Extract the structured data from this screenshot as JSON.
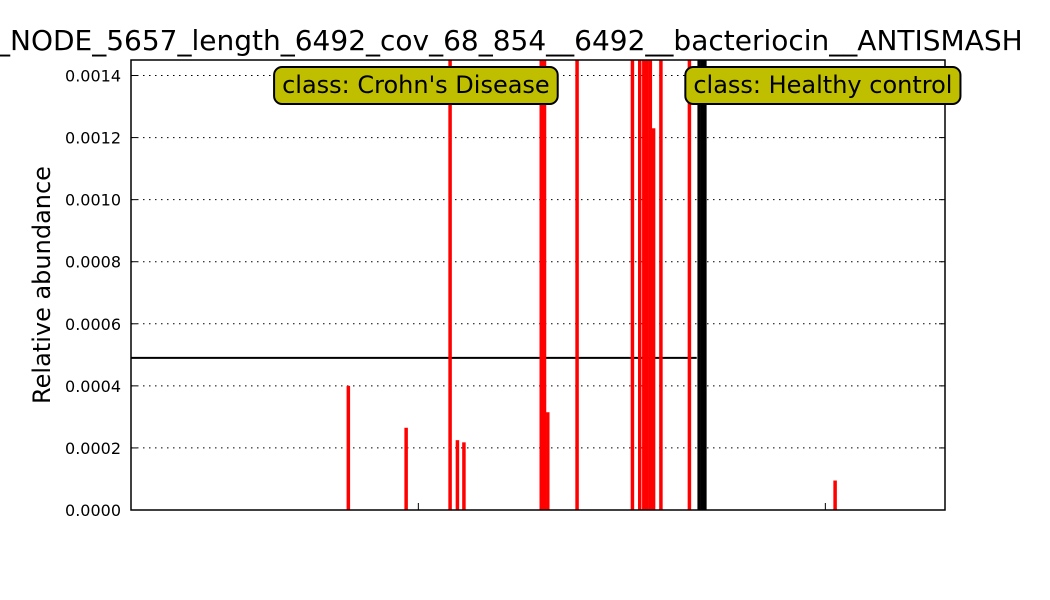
{
  "chart_data": {
    "type": "bar",
    "title": "_NODE_5657_length_6492_cov_68_854__6492__bacteriocin__ANTISMASH",
    "xlabel": "",
    "ylabel": "Relative abundance",
    "xlim": [
      0,
      1
    ],
    "ylim": [
      0,
      0.00145
    ],
    "yticks": [
      "0.0000",
      "0.0002",
      "0.0004",
      "0.0006",
      "0.0008",
      "0.0010",
      "0.0012",
      "0.0014"
    ],
    "grid": "y-dotted",
    "mean_line": {
      "value": 0.00049,
      "x_range": [
        0,
        0.695
      ]
    },
    "colors": {
      "crohns": "#ff0000",
      "healthy": "#000000",
      "annotation_bg": "#bfbf00"
    },
    "annotations": [
      {
        "text": "class: Crohn's Disease",
        "x": 0.35
      },
      {
        "text": "class: Healthy control",
        "x": 0.85
      }
    ],
    "series": [
      {
        "name": "Crohn's Disease",
        "color": "#ff0000",
        "points": [
          {
            "x": 0.267,
            "value": 0.0004
          },
          {
            "x": 0.338,
            "value": 0.000265
          },
          {
            "x": 0.392,
            "value": 0.00145
          },
          {
            "x": 0.401,
            "value": 0.000225
          },
          {
            "x": 0.409,
            "value": 0.000218
          },
          {
            "x": 0.504,
            "value": 0.00145
          },
          {
            "x": 0.508,
            "value": 0.00145
          },
          {
            "x": 0.512,
            "value": 0.000315
          },
          {
            "x": 0.548,
            "value": 0.00145
          },
          {
            "x": 0.616,
            "value": 0.00145
          },
          {
            "x": 0.625,
            "value": 0.00145
          },
          {
            "x": 0.63,
            "value": 0.00145
          },
          {
            "x": 0.634,
            "value": 0.00145
          },
          {
            "x": 0.638,
            "value": 0.00145
          },
          {
            "x": 0.642,
            "value": 0.00123
          },
          {
            "x": 0.651,
            "value": 0.00145
          },
          {
            "x": 0.686,
            "value": 0.00145
          }
        ]
      },
      {
        "name": "Healthy control",
        "color": "#000000",
        "points": [
          {
            "x": 0.698,
            "value": 0.00145
          },
          {
            "x": 0.702,
            "value": 0.00145
          },
          {
            "x": 0.705,
            "value": 0.00145
          },
          {
            "x": 0.865,
            "value": 9.5e-05,
            "color": "#ff0000"
          }
        ]
      }
    ]
  }
}
